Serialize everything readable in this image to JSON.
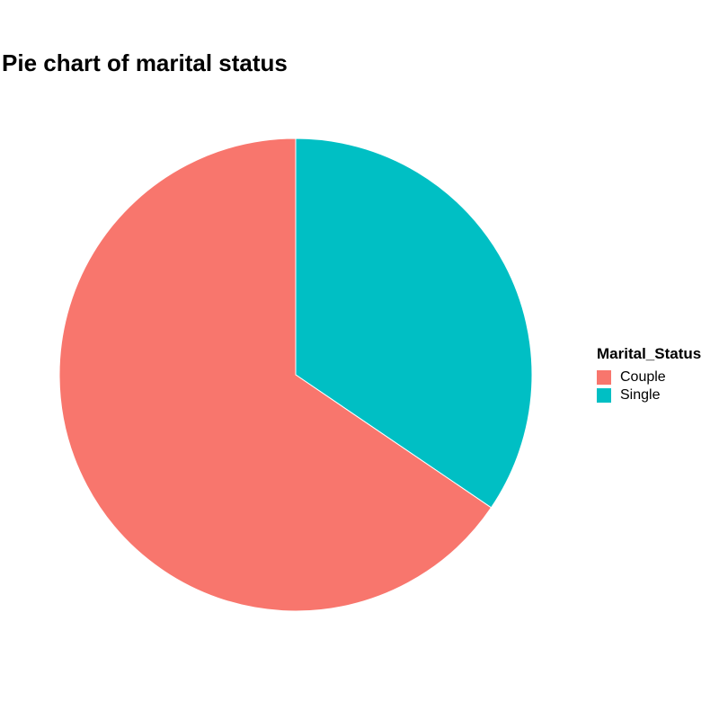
{
  "chart_data": {
    "type": "pie",
    "title": "Pie chart of marital status",
    "legend_title": "Marital_Status",
    "legend_position": "right",
    "categories": [
      "Couple",
      "Single"
    ],
    "values": [
      65.5,
      34.5
    ],
    "colors": [
      "#F8766D",
      "#00BFC4"
    ],
    "slice_border_color": "#ffffff"
  }
}
